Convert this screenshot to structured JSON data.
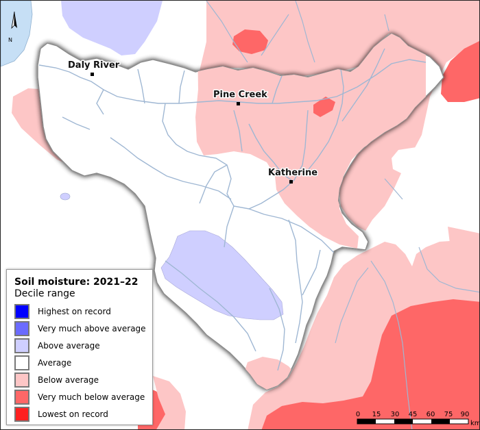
{
  "map": {
    "towns": [
      {
        "name": "Daly River"
      },
      {
        "name": "Pine Creek"
      },
      {
        "name": "Katherine"
      }
    ],
    "north_label": "N",
    "colors": {
      "sea": "#c6dff5",
      "river": "#9fb7d3",
      "outside_mask": "#ffffff",
      "below_average": "#fdc6c6",
      "very_much_below_average": "#fe6767",
      "above_average": "#cfcfff",
      "average": "#ffffff"
    }
  },
  "legend": {
    "title": "Soil moisture: 2021–22",
    "subtitle": "Decile range",
    "items": [
      {
        "label": "Highest on record",
        "color": "#0000ff"
      },
      {
        "label": "Very much above average",
        "color": "#6b6bff"
      },
      {
        "label": "Above average",
        "color": "#cfcfff"
      },
      {
        "label": "Average",
        "color": "#ffffff"
      },
      {
        "label": "Below average",
        "color": "#fdc6c6"
      },
      {
        "label": "Very much below average",
        "color": "#fe6767"
      },
      {
        "label": "Lowest on record",
        "color": "#fe2020"
      }
    ]
  },
  "scale_bar": {
    "ticks": [
      "0",
      "15",
      "30",
      "45",
      "60",
      "75",
      "90"
    ],
    "unit": "km"
  }
}
